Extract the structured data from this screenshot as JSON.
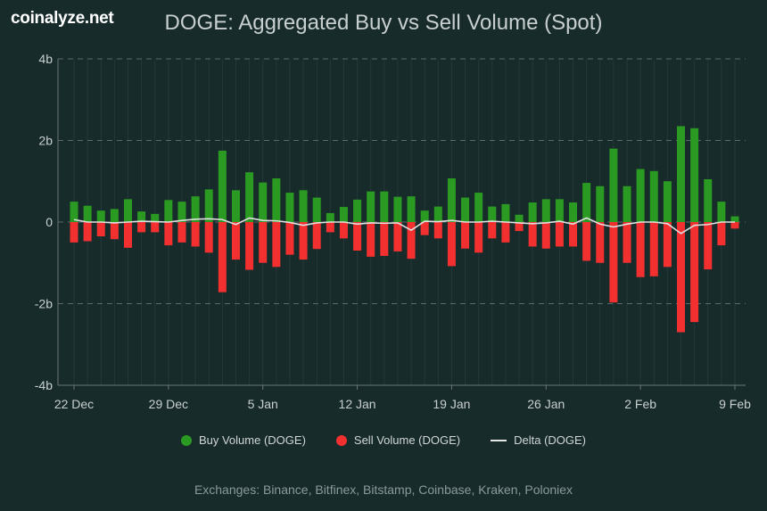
{
  "brand": "coinalyze.net",
  "footer": "Exchanges: Binance, Bitfinex, Bitstamp, Coinbase, Kraken, Poloniex",
  "colors": {
    "buy": "#2a9a22",
    "sell": "#f23030",
    "delta": "#e0e0e0",
    "background": "#182b2b"
  },
  "chart_data": {
    "type": "bar",
    "title": "DOGE: Aggregated Buy vs Sell Volume (Spot)",
    "ylim": [
      -4,
      4
    ],
    "y_ticks": [
      {
        "v": 4,
        "label": "4b"
      },
      {
        "v": 2,
        "label": "2b"
      },
      {
        "v": 0,
        "label": "0"
      },
      {
        "v": -2,
        "label": "-2b"
      },
      {
        "v": -4,
        "label": "-4b"
      }
    ],
    "x_ticks": [
      {
        "i": 0,
        "label": "22 Dec"
      },
      {
        "i": 7,
        "label": "29 Dec"
      },
      {
        "i": 14,
        "label": "5 Jan"
      },
      {
        "i": 21,
        "label": "12 Jan"
      },
      {
        "i": 28,
        "label": "19 Jan"
      },
      {
        "i": 35,
        "label": "26 Jan"
      },
      {
        "i": 42,
        "label": "2 Feb"
      },
      {
        "i": 49,
        "label": "9 Feb"
      }
    ],
    "grid": true,
    "legend_position": "bottom",
    "series": [
      {
        "name": "Buy Volume (DOGE)",
        "type": "bar",
        "values": [
          0.5,
          0.4,
          0.28,
          0.32,
          0.56,
          0.26,
          0.2,
          0.54,
          0.5,
          0.63,
          0.8,
          1.75,
          0.78,
          1.22,
          0.97,
          1.07,
          0.72,
          0.78,
          0.6,
          0.22,
          0.37,
          0.55,
          0.75,
          0.75,
          0.62,
          0.63,
          0.28,
          0.38,
          1.07,
          0.6,
          0.72,
          0.38,
          0.44,
          0.18,
          0.48,
          0.56,
          0.56,
          0.48,
          0.96,
          0.88,
          1.8,
          0.88,
          1.3,
          1.25,
          1.0,
          2.35,
          2.3,
          1.05,
          0.5,
          0.14
        ]
      },
      {
        "name": "Sell Volume (DOGE)",
        "type": "bar",
        "values": [
          -0.5,
          -0.47,
          -0.35,
          -0.42,
          -0.63,
          -0.25,
          -0.25,
          -0.57,
          -0.5,
          -0.6,
          -0.75,
          -1.72,
          -0.92,
          -1.17,
          -1.0,
          -1.1,
          -0.8,
          -0.92,
          -0.66,
          -0.25,
          -0.4,
          -0.7,
          -0.85,
          -0.83,
          -0.72,
          -0.9,
          -0.32,
          -0.4,
          -1.08,
          -0.65,
          -0.75,
          -0.4,
          -0.5,
          -0.22,
          -0.6,
          -0.65,
          -0.6,
          -0.6,
          -0.95,
          -1.0,
          -1.97,
          -1.0,
          -1.35,
          -1.33,
          -1.1,
          -2.7,
          -2.45,
          -1.16,
          -0.57,
          -0.16
        ]
      },
      {
        "name": "Delta (DOGE)",
        "type": "line",
        "values": [
          0.06,
          0.0,
          0.0,
          -0.02,
          0.0,
          0.02,
          0.01,
          0.0,
          0.04,
          0.07,
          0.08,
          0.06,
          -0.06,
          0.1,
          0.04,
          0.03,
          -0.01,
          -0.08,
          -0.02,
          0.0,
          0.0,
          -0.05,
          -0.02,
          -0.03,
          -0.02,
          -0.2,
          0.02,
          0.01,
          0.04,
          0.0,
          0.0,
          0.02,
          0.0,
          -0.02,
          -0.04,
          -0.02,
          0.02,
          -0.05,
          0.1,
          -0.05,
          -0.12,
          -0.05,
          0.0,
          0.0,
          -0.04,
          -0.28,
          -0.08,
          -0.06,
          0.0,
          0.0
        ]
      }
    ]
  }
}
